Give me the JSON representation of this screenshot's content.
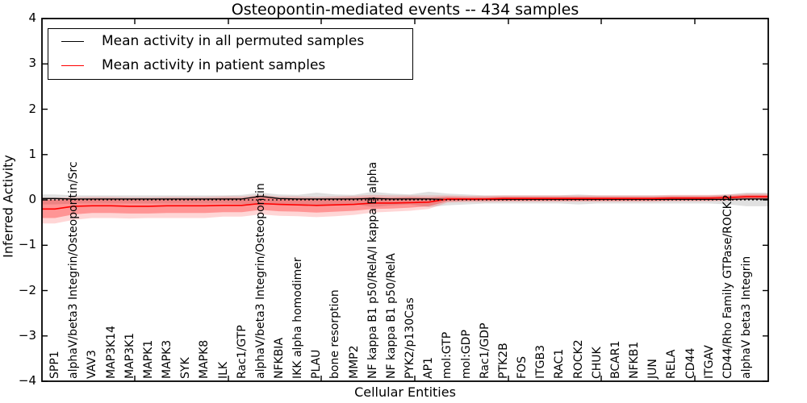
{
  "chart_data": {
    "type": "line",
    "title": "Osteopontin-mediated events -- 434 samples",
    "xlabel": "Cellular Entities",
    "ylabel": "Inferred Activity",
    "ylim": [
      -4,
      4
    ],
    "yticks": [
      4,
      3,
      2,
      1,
      0,
      -1,
      -2,
      -3,
      -4
    ],
    "ytick_labels": [
      "4",
      "3",
      "2",
      "1",
      "0",
      "−1",
      "−2",
      "−3",
      "−4"
    ],
    "grid": false,
    "legend_position": "upper left",
    "categories": [
      "SPP1",
      "alphaV/beta3 Integrin/Osteopontin/Src",
      "VAV3",
      "MAP3K14",
      "MAP3K1",
      "MAPK1",
      "MAPK3",
      "SYK",
      "MAPK8",
      "ILK",
      "Rac1/GTP",
      "alphaV/beta3 Integrin/Osteopontin",
      "NFKBIA",
      "IKK alpha homodimer",
      "PLAU",
      "bone resorption",
      "MMP2",
      "NF kappa B1 p50/RelA/I kappa B alpha",
      "NF kappa B1 p50/RelA",
      "PYK2/p130Cas",
      "AP1",
      "mol:GTP",
      "mol:GDP",
      "Rac1/GDP",
      "PTK2B",
      "FOS",
      "ITGB3",
      "RAC1",
      "ROCK2",
      "CHUK",
      "BCAR1",
      "NFKB1",
      "JUN",
      "RELA",
      "CD44",
      "ITGAV",
      "CD44/Rho Family GTPase/ROCK2",
      "alphaV beta3 Integrin"
    ],
    "series": [
      {
        "name": "Mean activity in all permuted samples",
        "color": "#000000",
        "values": [
          0.03,
          0.02,
          0.02,
          0.02,
          0.02,
          0.02,
          0.02,
          0.02,
          0.02,
          0.02,
          0.02,
          0.08,
          0.03,
          0.02,
          0.02,
          0.02,
          0.02,
          0.03,
          0.02,
          0.02,
          0.02,
          0.01,
          0.01,
          0.01,
          0.01,
          0.01,
          0.01,
          0.01,
          0.01,
          0.01,
          0.01,
          0.01,
          0.01,
          0.01,
          0.01,
          0.01,
          0.01,
          0.02
        ]
      },
      {
        "name": "Mean activity in patient samples",
        "color": "#ff0000",
        "values": [
          -0.2,
          -0.14,
          -0.13,
          -0.13,
          -0.14,
          -0.14,
          -0.13,
          -0.13,
          -0.13,
          -0.12,
          -0.12,
          -0.08,
          -0.1,
          -0.11,
          -0.12,
          -0.11,
          -0.1,
          -0.07,
          -0.07,
          -0.06,
          -0.05,
          0.02,
          0.02,
          0.02,
          0.03,
          0.03,
          0.03,
          0.03,
          0.03,
          0.03,
          0.03,
          0.03,
          0.03,
          0.04,
          0.04,
          0.04,
          0.05,
          0.07
        ]
      }
    ],
    "bands": [
      {
        "name": "permuted-confidence-band",
        "color": "#000000",
        "opacity": 0.12,
        "lower": [
          -0.1,
          -0.08,
          -0.08,
          -0.08,
          -0.08,
          -0.08,
          -0.08,
          -0.08,
          -0.08,
          -0.08,
          -0.09,
          -0.12,
          -0.1,
          -0.09,
          -0.14,
          -0.1,
          -0.09,
          -0.16,
          -0.12,
          -0.1,
          -0.16,
          -0.12,
          -0.1,
          -0.08,
          -0.08,
          -0.08,
          -0.08,
          -0.08,
          -0.1,
          -0.08,
          -0.08,
          -0.08,
          -0.08,
          -0.08,
          -0.08,
          -0.08,
          -0.1,
          -0.14
        ],
        "upper": [
          0.12,
          0.1,
          0.1,
          0.1,
          0.1,
          0.1,
          0.1,
          0.1,
          0.1,
          0.1,
          0.11,
          0.16,
          0.12,
          0.11,
          0.16,
          0.12,
          0.11,
          0.18,
          0.14,
          0.12,
          0.18,
          0.14,
          0.12,
          0.1,
          0.1,
          0.1,
          0.1,
          0.1,
          0.12,
          0.1,
          0.1,
          0.1,
          0.1,
          0.1,
          0.1,
          0.1,
          0.12,
          0.16
        ]
      },
      {
        "name": "patient-confidence-band-outer",
        "color": "#ff0000",
        "opacity": 0.16,
        "lower": [
          -0.52,
          -0.44,
          -0.4,
          -0.4,
          -0.41,
          -0.4,
          -0.4,
          -0.4,
          -0.4,
          -0.37,
          -0.37,
          -0.32,
          -0.35,
          -0.36,
          -0.38,
          -0.36,
          -0.33,
          -0.28,
          -0.26,
          -0.24,
          -0.2,
          -0.06,
          -0.05,
          -0.05,
          -0.04,
          -0.04,
          -0.04,
          -0.04,
          -0.04,
          -0.04,
          -0.04,
          -0.04,
          -0.04,
          -0.03,
          -0.03,
          -0.03,
          -0.02,
          0.0
        ],
        "upper": [
          0.05,
          0.06,
          0.07,
          0.07,
          0.06,
          0.06,
          0.07,
          0.07,
          0.07,
          0.08,
          0.08,
          0.11,
          0.08,
          0.08,
          0.07,
          0.08,
          0.09,
          0.11,
          0.1,
          0.1,
          0.1,
          0.1,
          0.09,
          0.09,
          0.1,
          0.1,
          0.1,
          0.1,
          0.1,
          0.1,
          0.1,
          0.1,
          0.1,
          0.11,
          0.11,
          0.11,
          0.12,
          0.14
        ]
      },
      {
        "name": "patient-confidence-band-inner",
        "color": "#ff0000",
        "opacity": 0.3,
        "lower": [
          -0.4,
          -0.32,
          -0.29,
          -0.29,
          -0.3,
          -0.3,
          -0.29,
          -0.29,
          -0.29,
          -0.27,
          -0.27,
          -0.22,
          -0.25,
          -0.26,
          -0.28,
          -0.26,
          -0.24,
          -0.2,
          -0.19,
          -0.17,
          -0.14,
          -0.03,
          -0.02,
          -0.02,
          -0.02,
          -0.02,
          -0.02,
          -0.02,
          -0.02,
          -0.02,
          -0.02,
          -0.02,
          -0.02,
          -0.01,
          -0.01,
          -0.01,
          0.0,
          0.02
        ],
        "upper": [
          0.0,
          0.02,
          0.03,
          0.03,
          0.02,
          0.02,
          0.03,
          0.03,
          0.03,
          0.04,
          0.04,
          0.06,
          0.04,
          0.04,
          0.03,
          0.04,
          0.05,
          0.06,
          0.05,
          0.06,
          0.05,
          0.07,
          0.06,
          0.06,
          0.07,
          0.07,
          0.07,
          0.07,
          0.07,
          0.07,
          0.07,
          0.07,
          0.07,
          0.08,
          0.08,
          0.08,
          0.09,
          0.11
        ]
      }
    ],
    "zero_line": {
      "y": 0,
      "style": "dotted",
      "color": "#000000"
    }
  }
}
